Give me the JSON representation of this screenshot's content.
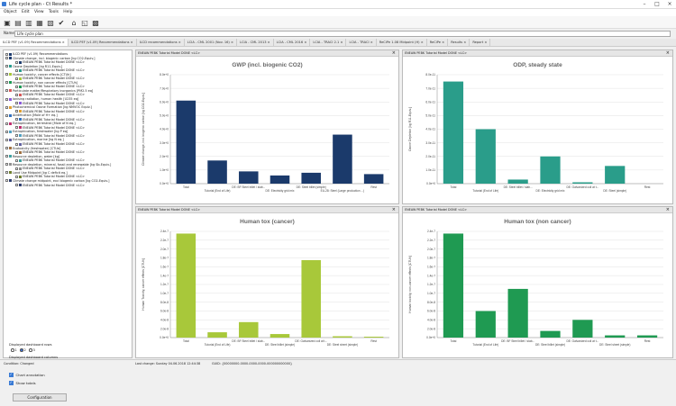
{
  "window": {
    "title": "Life cycle plan - Ct Results *"
  },
  "menu": [
    "Object",
    "Edit",
    "View",
    "Tools",
    "Help"
  ],
  "toolbar_icons": [
    "save-icon",
    "copy-icon",
    "paste-icon",
    "grid-icon",
    "export-icon",
    "check-icon",
    "home-icon",
    "folder-icon",
    "calculator-icon"
  ],
  "name_field": {
    "label": "Name",
    "value": "Life cycle plan"
  },
  "tabs": [
    {
      "label": "ILCD PEF (v1.09) Recommendations",
      "active": true
    },
    {
      "label": "ILCD PEF (v1.09) Recommendations",
      "active": false
    },
    {
      "label": "ILCD recommendations",
      "active": false
    },
    {
      "label": "LCIA - CML 2001 (Nov. 16)",
      "active": false
    },
    {
      "label": "LCIA - CML 2013",
      "active": false
    },
    {
      "label": "LCIA - CML 2016",
      "active": false
    },
    {
      "label": "LCIA - TRACI 2.1",
      "active": false
    },
    {
      "label": "LCIA - TRACI",
      "active": false
    },
    {
      "label": "ReCiPe 1.08 Midpoint (H)",
      "active": false
    },
    {
      "label": "ReCiPe",
      "active": false
    },
    {
      "label": "Results",
      "active": false
    },
    {
      "label": "Report",
      "active": false
    }
  ],
  "tree": [
    {
      "label": "ILCD PEF (v1.09) Recommendations",
      "level": 0,
      "color": "#1f3c6e"
    },
    {
      "label": "Climate change, incl. biogenic carbon [kg CO2-Equiv.]",
      "level": 0,
      "color": "#1f3c6e"
    },
    {
      "label": "ENEAW PEBK Tutorial Model DONE <LC>",
      "level": 1,
      "color": "#1f3c6e"
    },
    {
      "label": "Ozone Depletion [kg R11-Equiv.]",
      "level": 0,
      "color": "#2a9d8f"
    },
    {
      "label": "ENEAW PEBK Tutorial Model DONE <LC>",
      "level": 1,
      "color": "#2a9d8f"
    },
    {
      "label": "Human toxicity, cancer effects [CTUh]",
      "level": 0,
      "color": "#a8c838"
    },
    {
      "label": "ENEAW PEBK Tutorial Model DONE <LC>",
      "level": 1,
      "color": "#a8c838"
    },
    {
      "label": "Human toxicity, non cancer effects [CTUh]",
      "level": 0,
      "color": "#1e9a55"
    },
    {
      "label": "ENEAW PEBK Tutorial Model DONE <LC>",
      "level": 1,
      "color": "#1e9a55"
    },
    {
      "label": "Particulate matter/Respiratory inorganics [PM2.5 eq]",
      "level": 0,
      "color": "#d85a5a"
    },
    {
      "label": "ENEAW PEBK Tutorial Model DONE <LC>",
      "level": 1,
      "color": "#d85a5a"
    },
    {
      "label": "Ionising radiation, human health [U235 eq]",
      "level": 0,
      "color": "#8a5ad8"
    },
    {
      "label": "ENEAW PEBK Tutorial Model DONE <LC>",
      "level": 1,
      "color": "#8a5ad8"
    },
    {
      "label": "Photochemical Ozone Formation [kg NMVOC Equiv.]",
      "level": 0,
      "color": "#e0a030"
    },
    {
      "label": "ENEAW PEBK Tutorial Model DONE <LC>",
      "level": 1,
      "color": "#e0a030"
    },
    {
      "label": "Acidification [Mole of H+ eq.]",
      "level": 0,
      "color": "#3070c0"
    },
    {
      "label": "ENEAW PEBK Tutorial Model DONE <LC>",
      "level": 1,
      "color": "#3070c0"
    },
    {
      "label": "Eutrophication, terrestrial [Mole of N eq.]",
      "level": 0,
      "color": "#c03070"
    },
    {
      "label": "ENEAW PEBK Tutorial Model DONE <LC>",
      "level": 1,
      "color": "#c03070"
    },
    {
      "label": "Eutrophication, freshwater [kg P eq]",
      "level": 0,
      "color": "#50a0c0"
    },
    {
      "label": "ENEAW PEBK Tutorial Model DONE <LC>",
      "level": 1,
      "color": "#50a0c0"
    },
    {
      "label": "Eutrophication, marine [kg N eq.]",
      "level": 0,
      "color": "#6060a0"
    },
    {
      "label": "ENEAW PEBK Tutorial Model DONE <LC>",
      "level": 1,
      "color": "#6060a0"
    },
    {
      "label": "Ecotoxicity (freshwater) [CTUe]",
      "level": 0,
      "color": "#a07040"
    },
    {
      "label": "ENEAW PEBK Tutorial Model DONE <LC>",
      "level": 1,
      "color": "#a07040"
    },
    {
      "label": "Resource depletion, water [kg]",
      "level": 0,
      "color": "#40a0a0"
    },
    {
      "label": "ENEAW PEBK Tutorial Model DONE <LC>",
      "level": 1,
      "color": "#40a0a0"
    },
    {
      "label": "Resource depletion, mineral, fossil and renewable [kg Sb-Equiv.]",
      "level": 0,
      "color": "#909090"
    },
    {
      "label": "ENEAW PEBK Tutorial Model DONE <LC>",
      "level": 1,
      "color": "#909090"
    },
    {
      "label": "Land Use Midpoint [kg C deficit eq.]",
      "level": 0,
      "color": "#708030"
    },
    {
      "label": "ENEAW PEBK Tutorial Model DONE <LC>",
      "level": 1,
      "color": "#708030"
    },
    {
      "label": "Climate change midpoint, excl biogenic carbon [kg CO2-Equiv.]",
      "level": 0,
      "color": "#304070"
    },
    {
      "label": "ENEAW PEBK Tutorial Model DONE <LC>",
      "level": 1,
      "color": "#304070"
    }
  ],
  "options": {
    "rows_label": "Displayed dashboard rows",
    "rows_values": [
      "1",
      "2",
      "3"
    ],
    "rows_selected": 1,
    "cols_label": "Displayed dashboard columns",
    "cols_values": [
      "1",
      "2",
      "3"
    ],
    "cols_selected": 1,
    "chart_annotation": "Chart annotation",
    "show_totals": "Show totals",
    "config_button": "Configuration"
  },
  "panels": [
    {
      "header": "ENEAW PEBK Tutorial Model DONE <LC>"
    },
    {
      "header": "ENEAW PEBK Tutorial Model DONE <LC>"
    },
    {
      "header": "ENEAW PEBK Tutorial Model DONE <LC>"
    },
    {
      "header": "ENEAW PEBK Tutorial Model DONE <LC>"
    }
  ],
  "chart_data": [
    {
      "type": "bar",
      "title": "GWP (incl. biogenic CO2)",
      "ylabel": "Climate change, incl. biogenic carbon [kg CO2-Equiv.]",
      "color": "#1b3a6b",
      "ylim": [
        0,
        8
      ],
      "yticks": [
        "8.0e+0",
        "7.0e+0",
        "6.0e+0",
        "5.0e+0",
        "4.0e+0",
        "3.0e+0",
        "2.0e+0",
        "1.0e+0",
        "0.0e+0"
      ],
      "categories": [
        "Total",
        "Tutorial (End of Life)",
        "DE: BF Steel billet / slab...",
        "DE: Electricity grid mix",
        "DE: Steel billet (simple)",
        "EU-28: Steel (Large production ...)",
        "Rest"
      ],
      "values": [
        6.1,
        1.7,
        0.9,
        0.6,
        0.8,
        3.6,
        0.7
      ]
    },
    {
      "type": "bar",
      "title": "ODP, steady state",
      "ylabel": "Ozone Depletion [kg R11-Equiv.]",
      "color": "#2a9d8a",
      "ylim": [
        0,
        8
      ],
      "yticks": [
        "8.0e-11",
        "7.0e-11",
        "6.0e-11",
        "5.0e-11",
        "4.0e-11",
        "3.0e-11",
        "2.0e-11",
        "1.0e-11",
        "0.0e+0"
      ],
      "categories": [
        "Total",
        "Tutorial (End of Life)",
        "DE: Steel billet / slab...",
        "DE: Electricity grid mix",
        "DE: Galvanized coil at t...",
        "DE: Steel (simple)",
        "Rest"
      ],
      "values": [
        7.5,
        4.0,
        0.3,
        2.0,
        0.1,
        1.3,
        0.0
      ]
    },
    {
      "type": "bar",
      "title": "Human tox (cancer)",
      "ylabel": "Human Toxicity, cancer effects [CTUh]",
      "color": "#a8c83a",
      "ylim": [
        0,
        2.4
      ],
      "yticks": [
        "2.4e-7",
        "2.2e-7",
        "2.0e-7",
        "1.8e-7",
        "1.6e-7",
        "1.4e-7",
        "1.2e-7",
        "1.0e-7",
        "8.0e-8",
        "6.0e-8",
        "4.0e-8",
        "2.0e-8",
        "0.0e+0"
      ],
      "categories": [
        "Total",
        "Tutorial (End of Life)",
        "DE: BF Steel billet / slab...",
        "DE: Steel billet (simple)",
        "DE: Galvanized coil at t...",
        "DE: Steel sheet (simple)",
        "Rest"
      ],
      "values": [
        2.35,
        0.12,
        0.35,
        0.08,
        1.75,
        0.03,
        0.02
      ]
    },
    {
      "type": "bar",
      "title": "Human tox (non cancer)",
      "ylabel": "Human toxicity, non-cancer effects [CTUh]",
      "color": "#1f9a52",
      "ylim": [
        0,
        2.4
      ],
      "yticks": [
        "2.4e-7",
        "2.2e-7",
        "2.0e-7",
        "1.8e-7",
        "1.6e-7",
        "1.4e-7",
        "1.2e-7",
        "1.0e-7",
        "8.0e-8",
        "6.0e-8",
        "4.0e-8",
        "2.0e-8",
        "0.0e+0"
      ],
      "categories": [
        "Total",
        "Tutorial (End of Life)",
        "DE: BF Steel billet / slab...",
        "DE: Steel billet (simple)",
        "DE: Galvanized coil at t...",
        "DE: Steel sheet (simple)",
        "Rest"
      ],
      "values": [
        2.35,
        0.6,
        1.1,
        0.15,
        0.4,
        0.05,
        0.05
      ]
    }
  ],
  "status": {
    "left": "Condition: Changed",
    "mid": "Last change: Sunday 04.06.2018 12:44:38",
    "right": "GUID: {00000000-0000-0000-0000-000000000000}"
  }
}
